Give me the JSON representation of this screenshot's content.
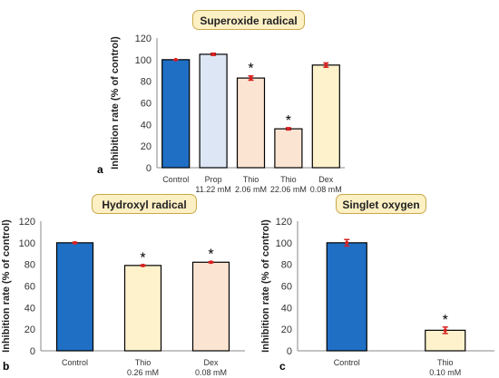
{
  "chart_data": [
    {
      "id": "a",
      "type": "bar",
      "panel_label": "a",
      "title": "Superoxide radical",
      "ylabel": "Inhibition rate (% of control)",
      "ylim": [
        0,
        120
      ],
      "yticks": [
        0,
        20,
        40,
        60,
        80,
        100,
        120
      ],
      "categories": [
        {
          "name": "Control",
          "sub": ""
        },
        {
          "name": "Prop",
          "sub": "11.22 mM"
        },
        {
          "name": "Thio",
          "sub": "2.06 mM"
        },
        {
          "name": "Thio",
          "sub": "22.06 mM"
        },
        {
          "name": "Dex",
          "sub": "0.08 mM"
        }
      ],
      "values": [
        100,
        105,
        83,
        36,
        95
      ],
      "errors": [
        0,
        1,
        2,
        1,
        2
      ],
      "significant": [
        false,
        false,
        true,
        true,
        false
      ],
      "colors": [
        "#1f6fc5",
        "#dce6f5",
        "#fce4d2",
        "#fce4d2",
        "#fdf2cc"
      ],
      "grid": false
    },
    {
      "id": "b",
      "type": "bar",
      "panel_label": "b",
      "title": "Hydroxyl radical",
      "ylabel": "Inhibition rate (% of control)",
      "ylim": [
        0,
        120
      ],
      "yticks": [
        0,
        20,
        40,
        60,
        80,
        100,
        120
      ],
      "categories": [
        {
          "name": "Control",
          "sub": ""
        },
        {
          "name": "Thio",
          "sub": "0.26 mM"
        },
        {
          "name": "Dex",
          "sub": "0.08 mM"
        }
      ],
      "values": [
        100,
        79,
        82
      ],
      "errors": [
        0.5,
        0.5,
        0.5
      ],
      "significant": [
        false,
        true,
        true
      ],
      "colors": [
        "#1f6fc5",
        "#fdf2cc",
        "#fce4d2"
      ],
      "grid": false
    },
    {
      "id": "c",
      "type": "bar",
      "panel_label": "c",
      "title": "Singlet oxygen",
      "ylabel": "Inhibition rate (% of control)",
      "ylim": [
        0,
        120
      ],
      "yticks": [
        0,
        20,
        40,
        60,
        80,
        100,
        120
      ],
      "categories": [
        {
          "name": "Control",
          "sub": ""
        },
        {
          "name": "Thio",
          "sub": "0.10 mM"
        }
      ],
      "values": [
        100,
        19
      ],
      "errors": [
        3,
        3
      ],
      "significant": [
        false,
        true
      ],
      "colors": [
        "#1f6fc5",
        "#fdf2cc"
      ],
      "grid": false
    }
  ],
  "colors": {
    "bar_outline": "#000000",
    "error_bar": "#d62020",
    "axis": "#888888",
    "title_box": "#fdf0c4",
    "title_border": "#c9a94a"
  }
}
